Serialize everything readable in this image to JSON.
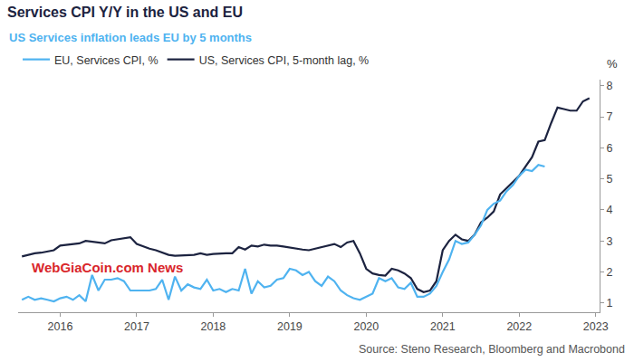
{
  "chart_data": {
    "type": "line",
    "title": "Services CPI Y/Y in the US and EU",
    "subtitle": "US Services inflation leads EU by 5 months",
    "ylabel": "%",
    "source": "Source: Steno Research, Bloomberg and Macrobond",
    "annotations": [
      {
        "text": "WebGiaCoin.com News",
        "color": "#d9262b",
        "x": 2015.6,
        "y": 2.15
      }
    ],
    "legend": "top left",
    "grid": false,
    "xlim": [
      2015.45,
      2023.05
    ],
    "xticks": [
      2016,
      2017,
      2018,
      2019,
      2020,
      2021,
      2022,
      2023
    ],
    "ylim": [
      0.7,
      8.2
    ],
    "yticks": [
      1,
      2,
      3,
      4,
      5,
      6,
      7,
      8
    ],
    "x": [
      2015.5,
      2015.583,
      2015.667,
      2015.75,
      2015.833,
      2015.917,
      2016,
      2016.083,
      2016.167,
      2016.25,
      2016.333,
      2016.417,
      2016.5,
      2016.583,
      2016.667,
      2016.75,
      2016.833,
      2016.917,
      2017,
      2017.083,
      2017.167,
      2017.25,
      2017.333,
      2017.417,
      2017.5,
      2017.583,
      2017.667,
      2017.75,
      2017.833,
      2017.917,
      2018,
      2018.083,
      2018.167,
      2018.25,
      2018.333,
      2018.417,
      2018.5,
      2018.583,
      2018.667,
      2018.75,
      2018.833,
      2018.917,
      2019,
      2019.083,
      2019.167,
      2019.25,
      2019.333,
      2019.417,
      2019.5,
      2019.583,
      2019.667,
      2019.75,
      2019.833,
      2019.917,
      2020,
      2020.083,
      2020.167,
      2020.25,
      2020.333,
      2020.417,
      2020.5,
      2020.583,
      2020.667,
      2020.75,
      2020.833,
      2020.917,
      2021,
      2021.083,
      2021.167,
      2021.25,
      2021.333,
      2021.417,
      2021.5,
      2021.583,
      2021.667,
      2021.75,
      2021.833,
      2021.917,
      2022,
      2022.083,
      2022.167,
      2022.25,
      2022.333,
      2022.417,
      2022.5,
      2022.583,
      2022.667,
      2022.75,
      2022.833,
      2022.917
    ],
    "series": [
      {
        "name": "EU, Services CPI, %",
        "color": "#4fb3f0",
        "values": [
          1.1,
          1.2,
          1.1,
          1.15,
          1.1,
          1.05,
          1.15,
          1.2,
          1.1,
          1.25,
          1.05,
          1.9,
          1.4,
          1.75,
          1.75,
          1.8,
          1.7,
          1.4,
          1.4,
          1.4,
          1.4,
          1.45,
          1.75,
          1.1,
          1.85,
          1.4,
          1.6,
          1.5,
          1.45,
          1.75,
          1.4,
          1.45,
          1.35,
          1.45,
          1.4,
          2.1,
          1.3,
          1.7,
          1.5,
          1.55,
          1.75,
          1.8,
          2.1,
          2.05,
          1.9,
          2.0,
          1.7,
          1.55,
          1.85,
          1.7,
          1.4,
          1.25,
          1.15,
          1.1,
          1.2,
          1.3,
          1.8,
          1.7,
          1.8,
          1.5,
          1.45,
          1.65,
          1.2,
          1.2,
          1.3,
          1.55,
          2.0,
          2.4,
          3.0,
          2.9,
          2.95,
          3.2,
          3.5,
          4.0,
          4.2,
          4.3,
          4.6,
          4.8,
          5.1,
          5.3,
          5.25,
          5.45,
          5.4,
          null,
          null,
          null,
          null,
          null,
          null,
          null
        ]
      },
      {
        "name": "US, Services CPI, 5-month lag, %",
        "color": "#1c2340",
        "values": [
          2.5,
          2.55,
          2.6,
          2.62,
          2.65,
          2.7,
          2.85,
          2.88,
          2.9,
          2.92,
          3.0,
          2.98,
          2.95,
          2.92,
          3.02,
          3.05,
          3.08,
          3.12,
          2.9,
          2.82,
          2.75,
          2.7,
          2.62,
          2.55,
          2.52,
          2.53,
          2.55,
          2.55,
          2.6,
          2.55,
          2.58,
          2.6,
          2.6,
          2.6,
          2.8,
          2.72,
          2.85,
          2.82,
          2.88,
          2.85,
          2.85,
          2.82,
          2.78,
          2.75,
          2.72,
          2.7,
          2.75,
          2.8,
          2.85,
          2.9,
          2.8,
          2.95,
          3.0,
          2.6,
          2.1,
          1.95,
          1.9,
          1.88,
          2.1,
          2.05,
          1.95,
          1.8,
          1.45,
          1.35,
          1.4,
          1.7,
          2.7,
          3.0,
          3.2,
          3.05,
          3.0,
          3.2,
          3.6,
          3.75,
          3.95,
          4.5,
          4.7,
          4.9,
          5.1,
          5.4,
          5.7,
          6.2,
          6.25,
          6.8,
          7.3,
          7.25,
          7.2,
          7.2,
          7.5,
          7.6
        ]
      }
    ]
  }
}
